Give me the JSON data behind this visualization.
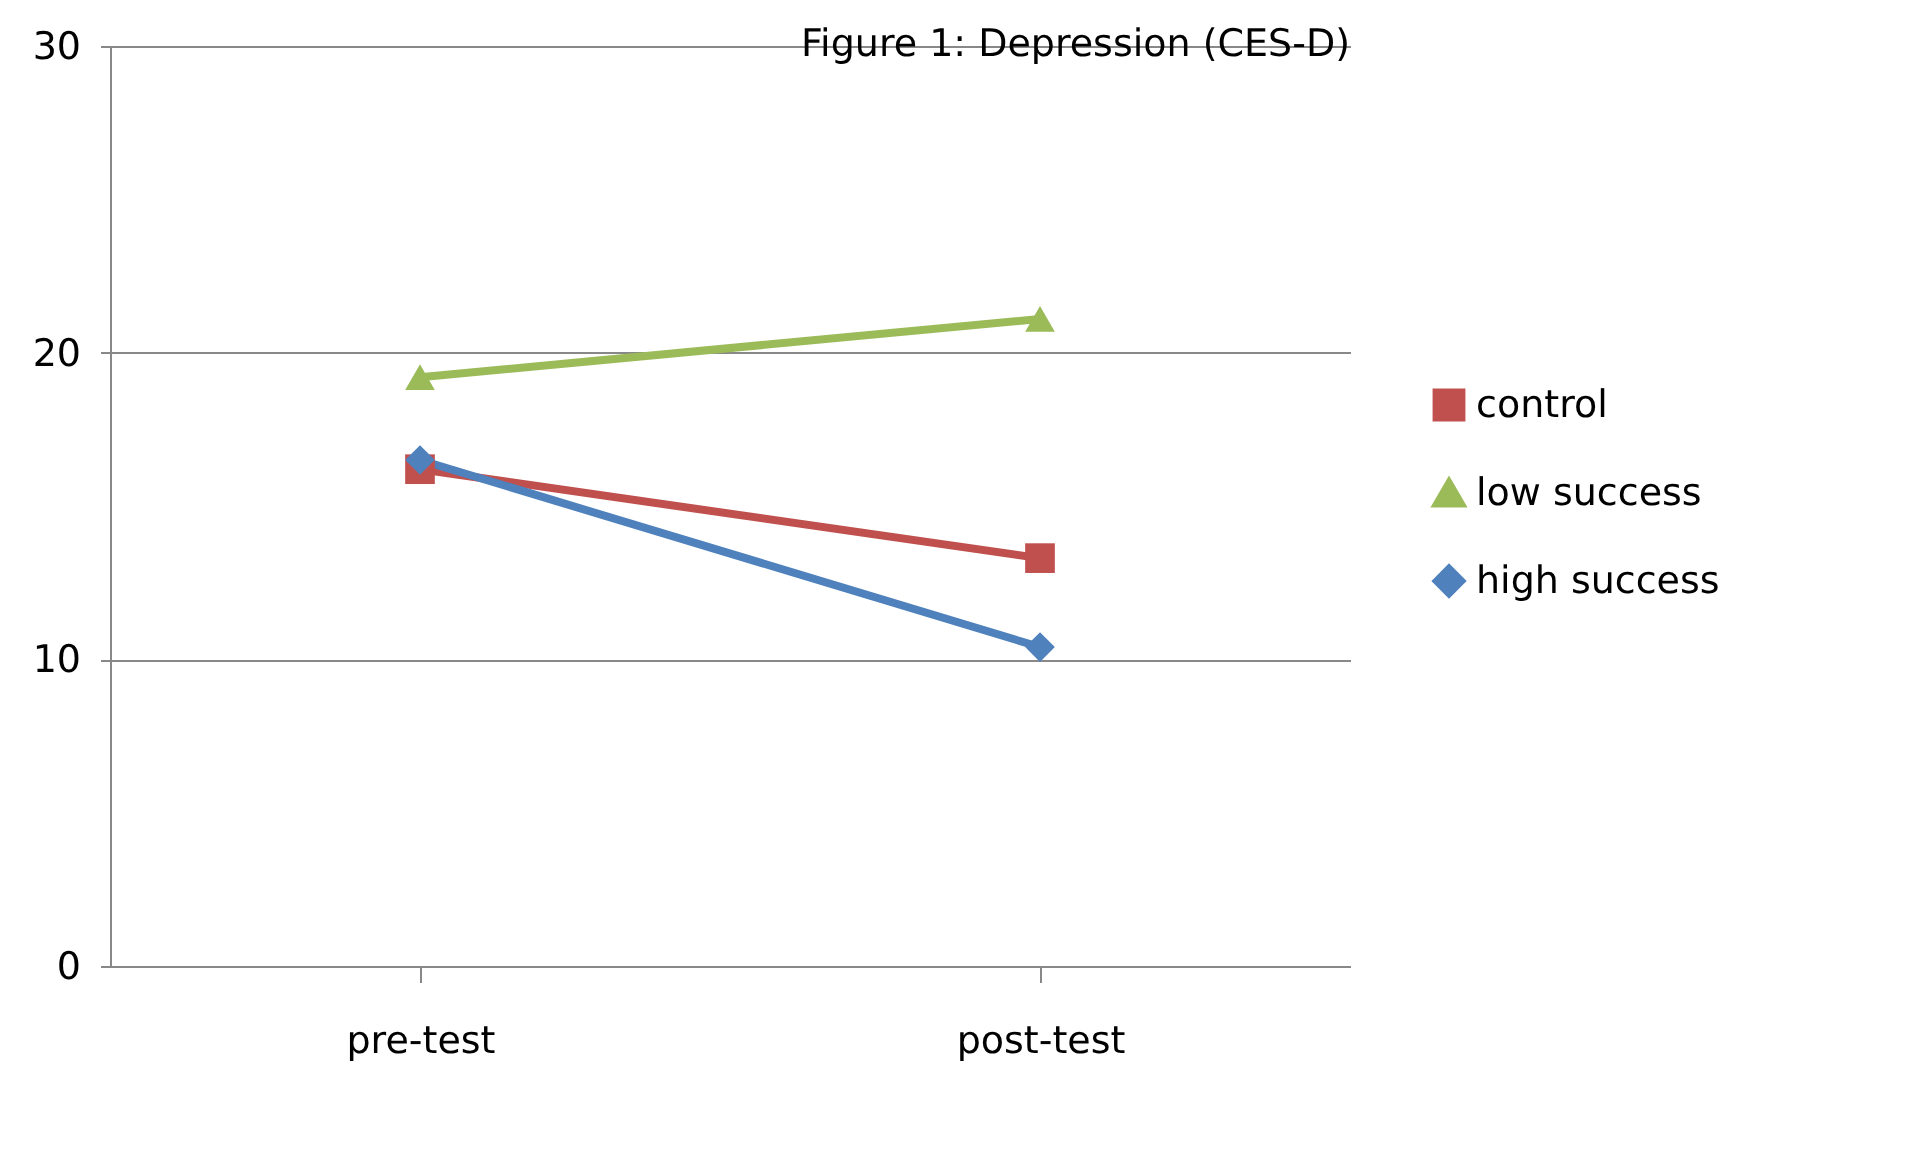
{
  "chart_data": {
    "type": "line",
    "title": "Figure 1: Depression (CES-D)",
    "categories": [
      "pre-test",
      "post-test"
    ],
    "series": [
      {
        "name": "control",
        "color": "#c0504d",
        "marker": "square",
        "values": [
          16.2,
          13.3
        ]
      },
      {
        "name": "low success",
        "color": "#9bbb59",
        "marker": "triangle",
        "values": [
          19.2,
          21.1
        ]
      },
      {
        "name": "high success",
        "color": "#4f81bd",
        "marker": "diamond",
        "values": [
          16.5,
          10.4
        ]
      }
    ],
    "ylim": [
      0,
      30
    ],
    "yticks": [
      0,
      10,
      20,
      30
    ],
    "grid": "y",
    "legend": "right",
    "line_style": "solid"
  }
}
